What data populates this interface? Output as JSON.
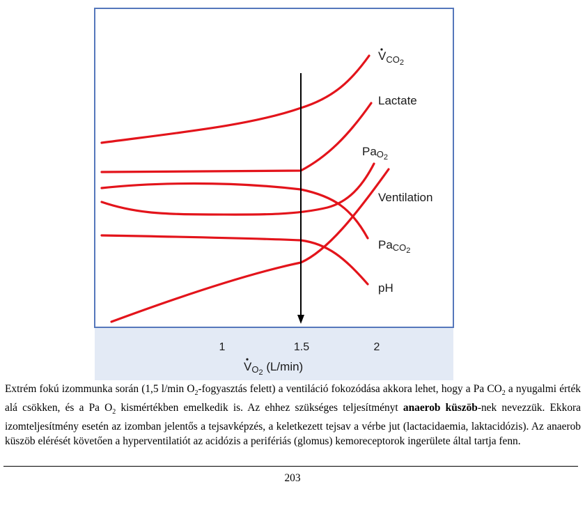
{
  "figure": {
    "colors": {
      "curve": "#e3141b",
      "frame": "#5577bb",
      "axis_band": "#e3eaf5",
      "marker": "#000000"
    },
    "curve_labels": {
      "vco2_main": "V",
      "vco2_sub": "CO",
      "vco2_subsub": "2",
      "lactate": "Lactate",
      "pao2_main": "Pa",
      "pao2_sub": "O",
      "pao2_subsub": "2",
      "ventilation": "Ventilation",
      "paco2_main": "Pa",
      "paco2_sub": "CO",
      "paco2_subsub": "2",
      "ph": "pH"
    },
    "xaxis": {
      "ticks": [
        "1",
        "1.5",
        "2"
      ],
      "label_main": "V",
      "label_sub": "O",
      "label_subsub": "2",
      "label_unit": " (L/min)"
    }
  },
  "chart_data": {
    "type": "line",
    "title": "",
    "xlabel": "V̇O2 (L/min)",
    "ylabel": "",
    "x_ticks": [
      1,
      1.5,
      2
    ],
    "xlim": [
      0.2,
      2.55
    ],
    "threshold_x": 1.5,
    "series": [
      {
        "name": "V̇CO2",
        "x": [
          0.25,
          0.8,
          1.5,
          1.8,
          2.0
        ],
        "y": [
          0.8,
          0.9,
          0.98,
          1.1,
          1.34
        ]
      },
      {
        "name": "Lactate",
        "x": [
          0.25,
          1.0,
          1.5,
          1.8,
          2.0
        ],
        "y": [
          0.62,
          0.62,
          0.63,
          0.76,
          0.98
        ]
      },
      {
        "name": "PaO2",
        "x": [
          0.25,
          0.7,
          1.2,
          1.6,
          1.9
        ],
        "y": [
          0.55,
          0.51,
          0.51,
          0.55,
          0.68
        ]
      },
      {
        "name": "Ventilation",
        "x": [
          0.35,
          1.0,
          1.5,
          1.8,
          2.05
        ],
        "y": [
          0.08,
          0.22,
          0.28,
          0.45,
          0.66
        ]
      },
      {
        "name": "PaCO2",
        "x": [
          0.25,
          0.8,
          1.5,
          1.8,
          1.95
        ],
        "y": [
          0.65,
          0.66,
          0.58,
          0.5,
          0.35
        ]
      },
      {
        "name": "pH",
        "x": [
          0.25,
          1.0,
          1.5,
          1.75,
          1.95
        ],
        "y": [
          0.4,
          0.39,
          0.36,
          0.28,
          0.12
        ]
      }
    ]
  },
  "caption": {
    "part1": "Extrém fokú izommunka során (1,5 l/min O",
    "sub1": "2",
    "part2": "-fogyasztás felett) a ventiláció fokozódása akkora lehet, hogy a Pa CO",
    "sub2": "2",
    "part3": " a nyugalmi érték alá csökken, és a Pa O",
    "sub3": "2",
    "part4": " kismértékben emelkedik is. Az ehhez szükséges teljesítményt ",
    "bold": "anaerob küszöb",
    "part5": "-nek nevezzük. Ekkora izomteljesítmény esetén az izomban jelentős a tejsavképzés, a keletkezett tejsav a vérbe jut (lactacidaemia, laktacidózis). Az anaerob küszöb elérését követően a hyperventilatiót az acidózis a perifériás (glomus) kemoreceptorok ingerülete által tartja fenn."
  },
  "page_number": "203"
}
